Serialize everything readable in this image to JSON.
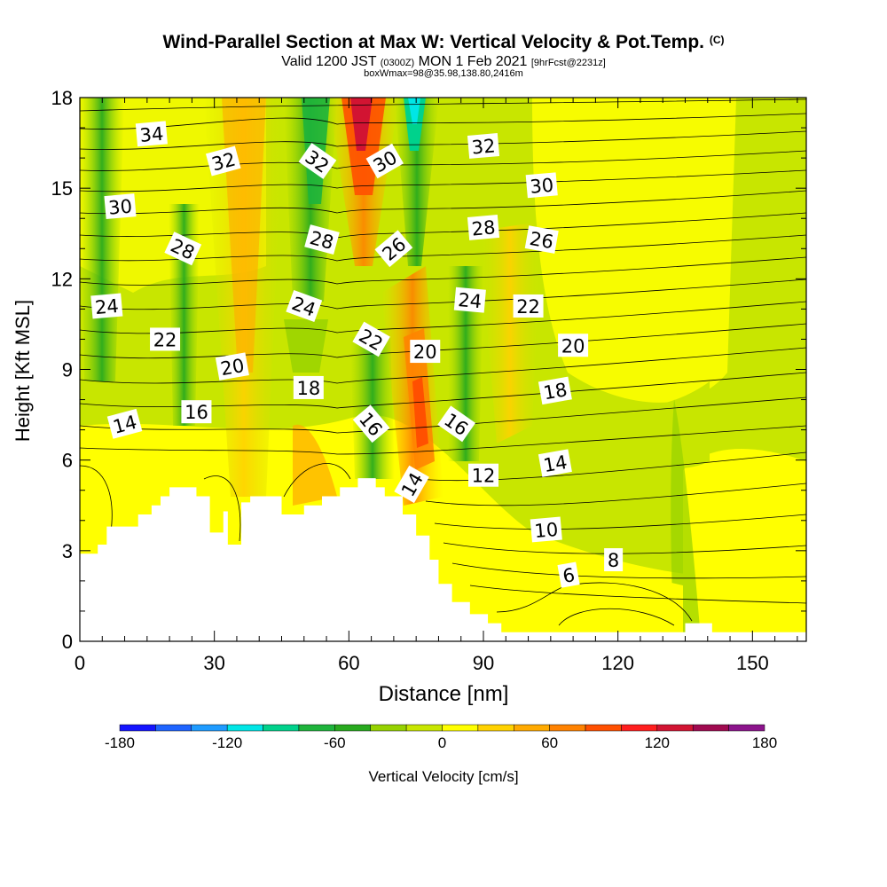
{
  "title": {
    "main": "Wind-Parallel Section at Max W: Vertical Velocity & Pot.Temp.",
    "copyright": "(C)",
    "valid_prefix": "Valid 1200 JST",
    "valid_utc": "(0300Z)",
    "valid_date": "MON 1 Feb 2021",
    "forecast": "[9hrFcst@2231z]",
    "box": "boxWmax=98@35.98,138.80,2416m"
  },
  "chart_data": {
    "type": "heatmap",
    "xlabel": "Distance [nm]",
    "ylabel": "Height [Kft MSL]",
    "xlim": [
      0,
      162
    ],
    "ylim": [
      0,
      18
    ],
    "x_ticks": [
      0,
      30,
      60,
      90,
      120,
      150
    ],
    "y_ticks": [
      0,
      3,
      6,
      9,
      12,
      15,
      18
    ],
    "colorbar": {
      "label": "Vertical Velocity [cm/s]",
      "range": [
        -180,
        180
      ],
      "ticks": [
        -180,
        -120,
        -60,
        0,
        60,
        120,
        180
      ],
      "colors": [
        "#1414ff",
        "#1e64ff",
        "#1e9bff",
        "#00e6e6",
        "#00d28c",
        "#1eb43c",
        "#28aa1e",
        "#96d200",
        "#c8e600",
        "#ffff00",
        "#ffd200",
        "#ffaa00",
        "#ff8200",
        "#ff5000",
        "#ff1e1e",
        "#d21432",
        "#a00a50",
        "#8c148c"
      ]
    },
    "terrain": [
      [
        0,
        2.9
      ],
      [
        4,
        2.9
      ],
      [
        4,
        3.2
      ],
      [
        6,
        3.2
      ],
      [
        6,
        3.8
      ],
      [
        13,
        3.8
      ],
      [
        13,
        4.2
      ],
      [
        16,
        4.2
      ],
      [
        16,
        4.5
      ],
      [
        18,
        4.5
      ],
      [
        18,
        4.8
      ],
      [
        20,
        4.8
      ],
      [
        20,
        5.1
      ],
      [
        26,
        5.1
      ],
      [
        26,
        4.8
      ],
      [
        29,
        4.8
      ],
      [
        29,
        3.6
      ],
      [
        32,
        3.6
      ],
      [
        32,
        4.3
      ],
      [
        33,
        4.3
      ],
      [
        33,
        3.2
      ],
      [
        36,
        3.2
      ],
      [
        36,
        4.6
      ],
      [
        38,
        4.6
      ],
      [
        38,
        4.8
      ],
      [
        45,
        4.8
      ],
      [
        45,
        4.2
      ],
      [
        50,
        4.2
      ],
      [
        50,
        4.5
      ],
      [
        54,
        4.5
      ],
      [
        54,
        4.8
      ],
      [
        58,
        4.8
      ],
      [
        58,
        5.1
      ],
      [
        62,
        5.1
      ],
      [
        62,
        5.4
      ],
      [
        66,
        5.4
      ],
      [
        66,
        5.1
      ],
      [
        68,
        5.1
      ],
      [
        68,
        4.8
      ],
      [
        72,
        4.8
      ],
      [
        72,
        4.2
      ],
      [
        75,
        4.2
      ],
      [
        75,
        3.5
      ],
      [
        78,
        3.5
      ],
      [
        78,
        2.7
      ],
      [
        80,
        2.7
      ],
      [
        80,
        1.9
      ],
      [
        83,
        1.9
      ],
      [
        83,
        1.3
      ],
      [
        87,
        1.3
      ],
      [
        87,
        0.9
      ],
      [
        91,
        0.9
      ],
      [
        91,
        0.6
      ],
      [
        94,
        0.6
      ],
      [
        94,
        0.3
      ],
      [
        135,
        0.3
      ],
      [
        135,
        0.6
      ],
      [
        141,
        0.6
      ],
      [
        141,
        0.3
      ],
      [
        162,
        0.3
      ]
    ],
    "contour_labels": [
      {
        "text": "34",
        "x": 16,
        "y": 16.8,
        "rot": -5
      },
      {
        "text": "32",
        "x": 32,
        "y": 15.9,
        "rot": -15
      },
      {
        "text": "30",
        "x": 9,
        "y": 14.4,
        "rot": -5
      },
      {
        "text": "28",
        "x": 23,
        "y": 13.0,
        "rot": 25
      },
      {
        "text": "24",
        "x": 6,
        "y": 11.1,
        "rot": -5
      },
      {
        "text": "22",
        "x": 19,
        "y": 10.0,
        "rot": 0
      },
      {
        "text": "20",
        "x": 34,
        "y": 9.1,
        "rot": -10
      },
      {
        "text": "16",
        "x": 26,
        "y": 7.6,
        "rot": 0
      },
      {
        "text": "14",
        "x": 10,
        "y": 7.2,
        "rot": -15
      },
      {
        "text": "32",
        "x": 53,
        "y": 15.9,
        "rot": 35
      },
      {
        "text": "28",
        "x": 54,
        "y": 13.3,
        "rot": 15
      },
      {
        "text": "24",
        "x": 50,
        "y": 11.1,
        "rot": 20
      },
      {
        "text": "18",
        "x": 51,
        "y": 8.4,
        "rot": 0
      },
      {
        "text": "30",
        "x": 68,
        "y": 15.9,
        "rot": -30
      },
      {
        "text": "26",
        "x": 70,
        "y": 13.0,
        "rot": -40
      },
      {
        "text": "22",
        "x": 65,
        "y": 10.0,
        "rot": 30
      },
      {
        "text": "16",
        "x": 65,
        "y": 7.2,
        "rot": 50
      },
      {
        "text": "20",
        "x": 77,
        "y": 9.6,
        "rot": 0
      },
      {
        "text": "14",
        "x": 74,
        "y": 5.2,
        "rot": -60
      },
      {
        "text": "16",
        "x": 84,
        "y": 7.2,
        "rot": 35
      },
      {
        "text": "32",
        "x": 90,
        "y": 16.4,
        "rot": -5
      },
      {
        "text": "28",
        "x": 90,
        "y": 13.7,
        "rot": -5
      },
      {
        "text": "24",
        "x": 87,
        "y": 11.3,
        "rot": 5
      },
      {
        "text": "12",
        "x": 90,
        "y": 5.5,
        "rot": 0
      },
      {
        "text": "30",
        "x": 103,
        "y": 15.1,
        "rot": -5
      },
      {
        "text": "26",
        "x": 103,
        "y": 13.3,
        "rot": 10
      },
      {
        "text": "22",
        "x": 100,
        "y": 11.1,
        "rot": 0
      },
      {
        "text": "20",
        "x": 110,
        "y": 9.8,
        "rot": 0
      },
      {
        "text": "18",
        "x": 106,
        "y": 8.3,
        "rot": -10
      },
      {
        "text": "14",
        "x": 106,
        "y": 5.9,
        "rot": -10
      },
      {
        "text": "10",
        "x": 104,
        "y": 3.7,
        "rot": -5
      },
      {
        "text": "8",
        "x": 119,
        "y": 2.7,
        "rot": 0
      },
      {
        "text": "6",
        "x": 109,
        "y": 2.2,
        "rot": -10
      }
    ]
  }
}
